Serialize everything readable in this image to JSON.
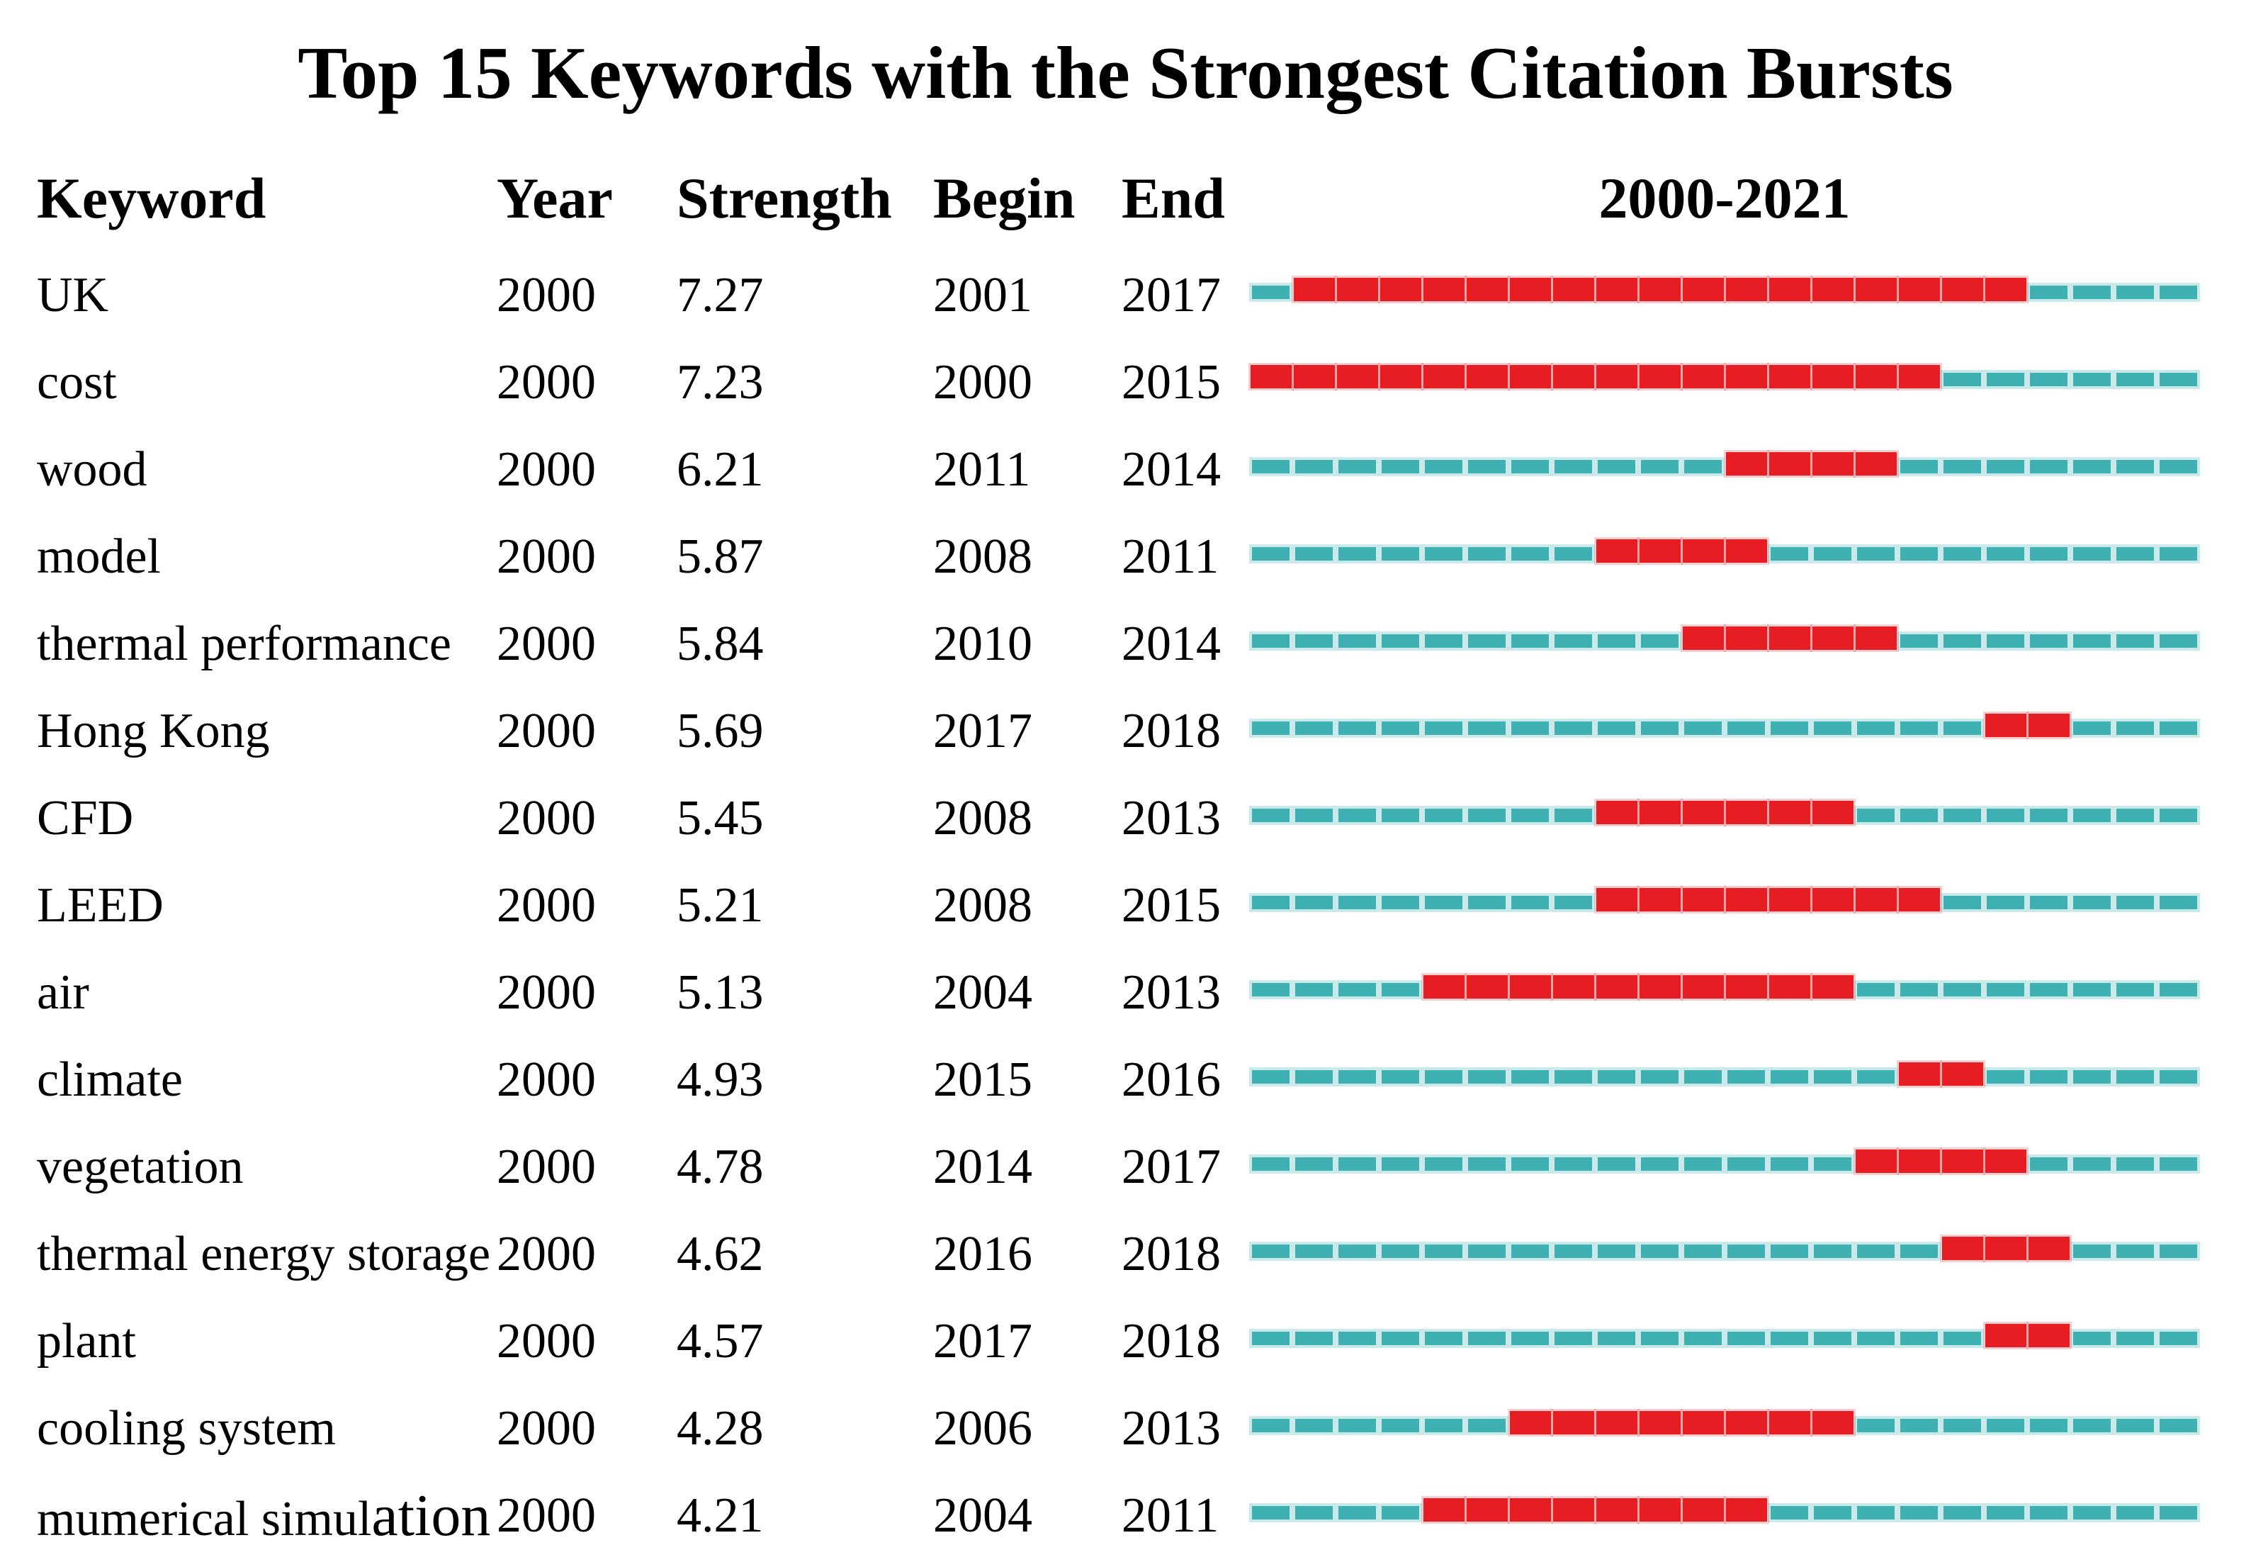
{
  "title": "Top 15 Keywords with the Strongest Citation Bursts",
  "table": {
    "headers": {
      "keyword": "Keyword",
      "year": "Year",
      "strength": "Strength",
      "begin": "Begin",
      "end": "End",
      "timeline": "2000-2021"
    }
  },
  "colors": {
    "burst_red": "#e71d24",
    "base_teal": "#3fb1b3"
  },
  "chart_data": {
    "type": "table",
    "title": "Top 15 Keywords with the Strongest Citation Bursts",
    "timeline_range": [
      2000,
      2021
    ],
    "columns": [
      "Keyword",
      "Year",
      "Strength",
      "Begin",
      "End",
      "2000-2021"
    ],
    "legend": {
      "burst_years_color_meaning": "red segments mark burst interval from Begin to End year",
      "base_years_color_meaning": "teal dashes mark non-burst years in 2000-2021"
    },
    "rows": [
      {
        "keyword": "UK",
        "year": "2000",
        "strength": "7.27",
        "begin": 2001,
        "end": 2017
      },
      {
        "keyword": "cost",
        "year": "2000",
        "strength": "7.23",
        "begin": 2000,
        "end": 2015
      },
      {
        "keyword": "wood",
        "year": "2000",
        "strength": "6.21",
        "begin": 2011,
        "end": 2014
      },
      {
        "keyword": "model",
        "year": "2000",
        "strength": "5.87",
        "begin": 2008,
        "end": 2011
      },
      {
        "keyword": "thermal performance",
        "year": "2000",
        "strength": "5.84",
        "begin": 2010,
        "end": 2014
      },
      {
        "keyword": "Hong Kong",
        "year": "2000",
        "strength": "5.69",
        "begin": 2017,
        "end": 2018
      },
      {
        "keyword": "CFD",
        "year": "2000",
        "strength": "5.45",
        "begin": 2008,
        "end": 2013
      },
      {
        "keyword": "LEED",
        "year": "2000",
        "strength": "5.21",
        "begin": 2008,
        "end": 2015
      },
      {
        "keyword": "air",
        "year": "2000",
        "strength": "5.13",
        "begin": 2004,
        "end": 2013
      },
      {
        "keyword": "climate",
        "year": "2000",
        "strength": "4.93",
        "begin": 2015,
        "end": 2016
      },
      {
        "keyword": "vegetation",
        "year": "2000",
        "strength": "4.78",
        "begin": 2014,
        "end": 2017
      },
      {
        "keyword": "thermal energy storage",
        "year": "2000",
        "strength": "4.62",
        "begin": 2016,
        "end": 2018
      },
      {
        "keyword": "plant",
        "year": "2000",
        "strength": "4.57",
        "begin": 2017,
        "end": 2018
      },
      {
        "keyword": "cooling system",
        "year": "2000",
        "strength": "4.28",
        "begin": 2006,
        "end": 2013
      },
      {
        "keyword": "mumerical simulation",
        "year": "2000",
        "strength": "4.21",
        "begin": 2004,
        "end": 2011,
        "keyword_large_tail": "ation"
      }
    ]
  }
}
